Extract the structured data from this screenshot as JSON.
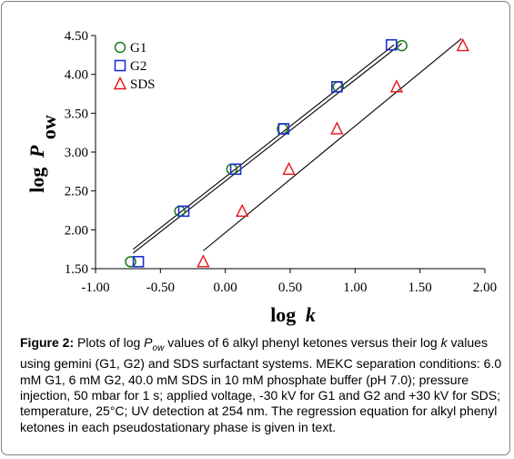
{
  "chart_data": {
    "type": "scatter",
    "xlabel_main": "log",
    "xlabel_var": "k",
    "ylabel_main": "log",
    "ylabel_var": "P",
    "ylabel_sub": "ow",
    "xlim": [
      -1.0,
      2.0
    ],
    "ylim": [
      1.5,
      4.5
    ],
    "x_ticks": [
      -1.0,
      -0.5,
      0.0,
      0.5,
      1.0,
      1.5,
      2.0
    ],
    "x_tick_labels": [
      "-1.00",
      "-0.50",
      "0.00",
      "0.50",
      "1.00",
      "1.50",
      "2.00"
    ],
    "y_ticks": [
      1.5,
      2.0,
      2.5,
      3.0,
      3.5,
      4.0,
      4.5
    ],
    "y_tick_labels": [
      "1.50",
      "2.00",
      "2.50",
      "3.00",
      "3.50",
      "4.00",
      "4.50"
    ],
    "grid": false,
    "legend_position": "top-left",
    "series": [
      {
        "name": "G1",
        "marker": "circle",
        "color": "#1a7a1a",
        "x": [
          -0.73,
          -0.35,
          0.05,
          0.44,
          0.87,
          1.36
        ],
        "y": [
          1.59,
          2.24,
          2.78,
          3.3,
          3.84,
          4.37
        ],
        "fit": [
          [
            -0.71,
            1.7
          ],
          [
            1.36,
            4.4
          ]
        ]
      },
      {
        "name": "G2",
        "marker": "square",
        "color": "#1f2fd0",
        "x": [
          -0.67,
          -0.32,
          0.08,
          0.45,
          0.86,
          1.28
        ],
        "y": [
          1.59,
          2.24,
          2.78,
          3.3,
          3.84,
          4.38
        ],
        "fit": [
          [
            -0.71,
            1.75
          ],
          [
            1.3,
            4.38
          ]
        ]
      },
      {
        "name": "SDS",
        "marker": "triangle",
        "color": "#e8141a",
        "x": [
          -0.17,
          0.13,
          0.49,
          0.86,
          1.32,
          1.83
        ],
        "y": [
          1.59,
          2.24,
          2.78,
          3.3,
          3.84,
          4.37
        ],
        "fit": [
          [
            -0.17,
            1.73
          ],
          [
            1.82,
            4.46
          ]
        ]
      }
    ]
  },
  "caption": {
    "label": "Figure 2:",
    "text_before_pow": " Plots of log ",
    "pow_main": "P",
    "pow_sub": "ow",
    "text_before_k": " values of 6 alkyl phenyl ketones versus their log ",
    "k_var": "k",
    "text_rest": " values using gemini (G1, G2) and SDS surfactant systems. MEKC separation conditions: 6.0 mM G1, 6 mM G2, 40.0 mM SDS in 10 mM phosphate buffer (pH 7.0); pressure injection, 50 mbar for 1 s; applied voltage, -30 kV for G1 and G2 and +30 kV for SDS; temperature, 25°C; UV detection at 254 nm. The regression equation for alkyl phenyl ketones in each pseudostationary phase is given in text."
  }
}
